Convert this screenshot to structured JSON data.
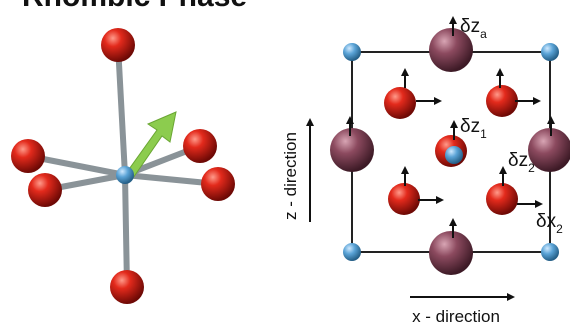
{
  "header": {
    "title_fragment": "Rhombic Phase"
  },
  "colors": {
    "oxygen": "#d11f14",
    "oxygen_dark": "#7a0a06",
    "metal_small": "#5aa3d6",
    "metal_large": "#8c4a5f",
    "bond": "#8e979c",
    "displacement_arrow": "#8ccc4e",
    "frame": "#222222"
  },
  "labels": {
    "dz_a": {
      "main": "δz",
      "sub": "a"
    },
    "dz_1": {
      "main": "δz",
      "sub": "1"
    },
    "dz_2": {
      "main": "δz",
      "sub": "2"
    },
    "dx_2": {
      "main": "δx",
      "sub": "2"
    },
    "z_direction": "z - direction",
    "x_direction": "x - direction"
  }
}
